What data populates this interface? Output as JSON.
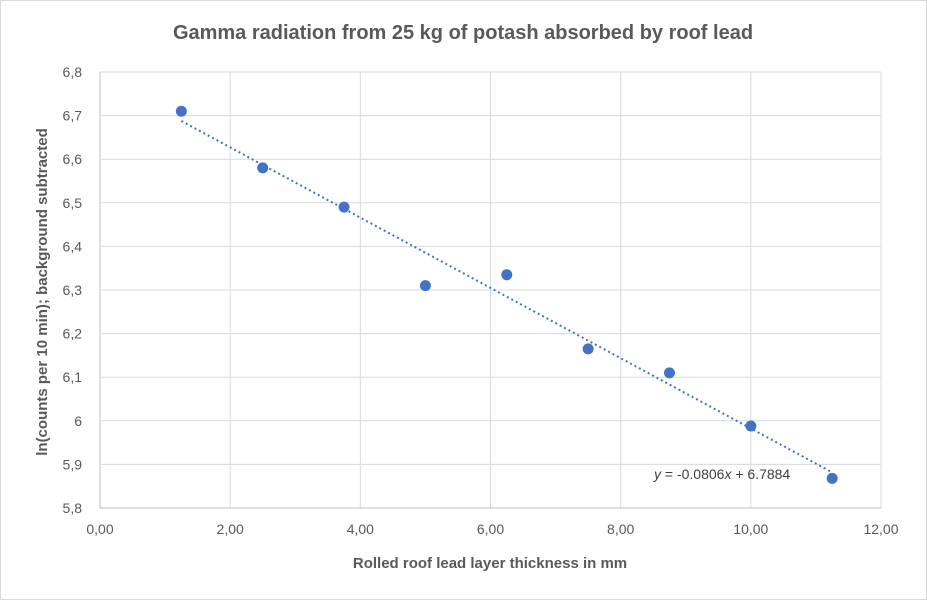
{
  "chart_data": {
    "type": "scatter",
    "title": "Gamma radiation from 25 kg of potash absorbed by roof lead",
    "xlabel": "Rolled roof lead layer thickness in mm",
    "ylabel": "ln(counts per 10 min); background subtracted",
    "xlim": [
      0,
      12
    ],
    "ylim": [
      5.8,
      6.8
    ],
    "x_ticks": [
      "0,00",
      "2,00",
      "4,00",
      "6,00",
      "8,00",
      "10,00",
      "12,00"
    ],
    "y_ticks": [
      "5,8",
      "5,9",
      "6",
      "6,1",
      "6,2",
      "6,3",
      "6,4",
      "6,5",
      "6,6",
      "6,7",
      "6,8"
    ],
    "grid": true,
    "points": [
      {
        "x": 1.25,
        "y": 6.71
      },
      {
        "x": 2.5,
        "y": 6.58
      },
      {
        "x": 3.75,
        "y": 6.49
      },
      {
        "x": 5.0,
        "y": 6.31
      },
      {
        "x": 6.25,
        "y": 6.335
      },
      {
        "x": 7.5,
        "y": 6.165
      },
      {
        "x": 8.75,
        "y": 6.11
      },
      {
        "x": 10.0,
        "y": 5.988
      },
      {
        "x": 11.25,
        "y": 5.868
      }
    ],
    "trendline": {
      "type": "linear",
      "slope": -0.0806,
      "intercept": 6.7884,
      "x_range": [
        1.25,
        11.25
      ]
    },
    "trendline_label": "y = -0.0806x + 6.7884",
    "color": "#4472c4"
  }
}
